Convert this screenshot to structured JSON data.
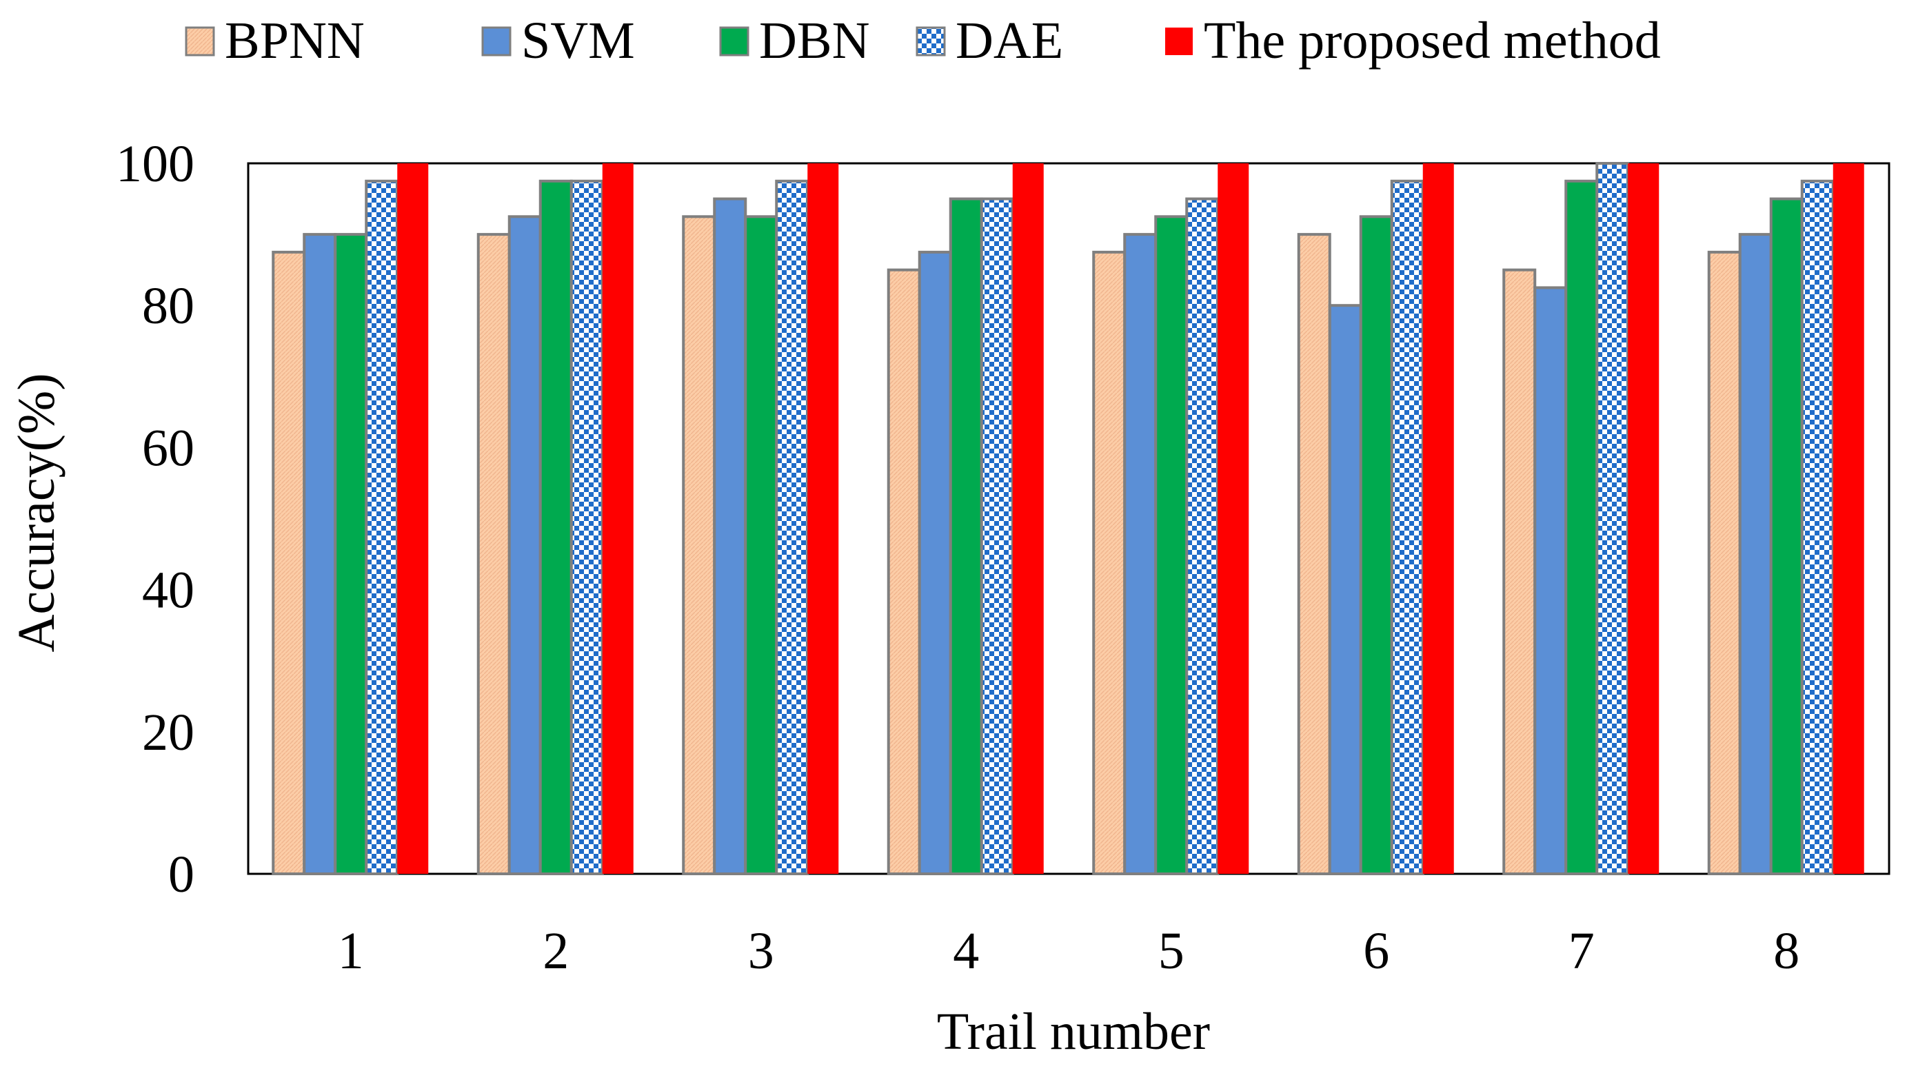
{
  "chart_data": {
    "type": "bar",
    "title": "",
    "xlabel": "Trail number",
    "ylabel": "Accuracy(%)",
    "ylim": [
      0,
      100
    ],
    "yticks": [
      "0",
      "20",
      "40",
      "60",
      "80",
      "100"
    ],
    "categories": [
      "1",
      "2",
      "3",
      "4",
      "5",
      "6",
      "7",
      "8"
    ],
    "legend_position": "top",
    "series": [
      {
        "name": "BPNN",
        "fill": "#FCCDA7",
        "pattern": "hatched",
        "values": [
          87.5,
          90,
          92.5,
          85,
          87.5,
          90,
          85,
          87.5
        ]
      },
      {
        "name": "SVM",
        "fill": "#5B8FD6",
        "pattern": "solid",
        "values": [
          90,
          92.5,
          95,
          87.5,
          90,
          80,
          82.5,
          90
        ]
      },
      {
        "name": "DBN",
        "fill": "#00AA4F",
        "pattern": "solid",
        "values": [
          90,
          97.5,
          92.5,
          95,
          92.5,
          92.5,
          97.5,
          95
        ]
      },
      {
        "name": "DAE",
        "fill": "#1F6CC9",
        "pattern": "checker",
        "values": [
          97.5,
          97.5,
          97.5,
          95,
          95,
          97.5,
          100,
          97.5
        ]
      },
      {
        "name": "The proposed method",
        "fill": "#FF0000",
        "pattern": "solid",
        "values": [
          100,
          100,
          100,
          100,
          100,
          100,
          100,
          100
        ]
      }
    ]
  },
  "colors": {
    "bar_border": "#7F7F7F",
    "axis": "#000000",
    "text": "#000000"
  }
}
